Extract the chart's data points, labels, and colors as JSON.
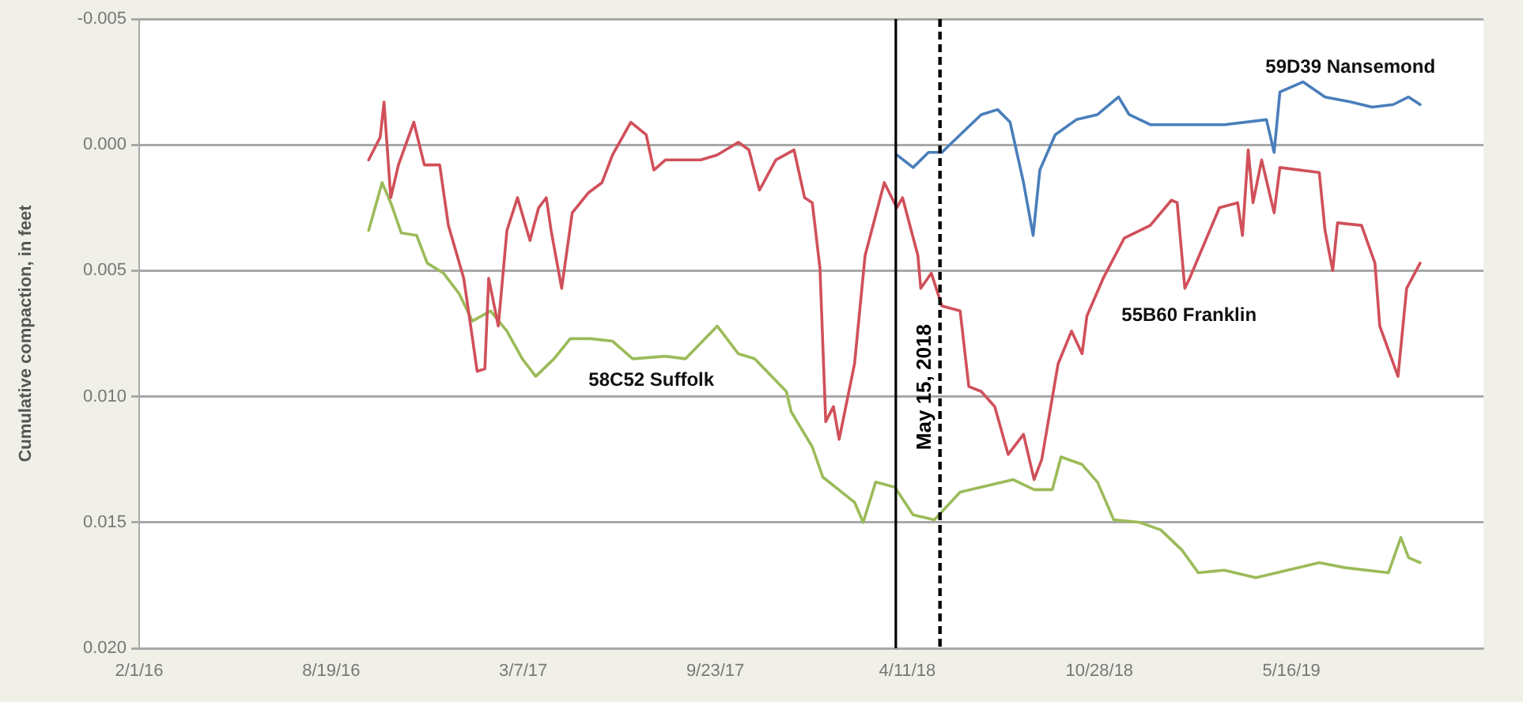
{
  "chart_data": {
    "type": "line",
    "ylabel": "Cumulative compaction, in feet",
    "xlim": [
      "2016-02-01",
      "2019-12-02"
    ],
    "xticks": [
      {
        "value": "2016-02-01",
        "label": "2/1/16"
      },
      {
        "value": "2016-08-19",
        "label": "8/19/16"
      },
      {
        "value": "2017-03-07",
        "label": "3/7/17"
      },
      {
        "value": "2017-09-23",
        "label": "9/23/17"
      },
      {
        "value": "2018-04-11",
        "label": "4/11/18"
      },
      {
        "value": "2018-10-28",
        "label": "10/28/18"
      },
      {
        "value": "2019-05-16",
        "label": "5/16/19"
      }
    ],
    "ylim": [
      0.02,
      -0.005
    ],
    "yticks": [
      {
        "value": -0.005,
        "label": "-0.005"
      },
      {
        "value": 0,
        "label": "0.000"
      },
      {
        "value": 0.005,
        "label": "0.005"
      },
      {
        "value": 0.01,
        "label": "0.010"
      },
      {
        "value": 0.015,
        "label": "0.015"
      },
      {
        "value": 0.02,
        "label": "0.020"
      }
    ],
    "grid": "y",
    "legend": false,
    "marker": "none",
    "line_style": "solid",
    "ref_lines": [
      {
        "axis": "x",
        "value": "2018-03-30",
        "color": "#000000",
        "line_style": "solid"
      },
      {
        "axis": "x",
        "value": "2018-05-15",
        "label": "May 15, 2018",
        "color": "#000000",
        "line_style": "dashed"
      }
    ],
    "series": [
      {
        "name": "59D39 Nansemond",
        "color": "#4a7ebb",
        "x": [
          "2018-03-31",
          "2018-04-17",
          "2018-05-03",
          "2018-05-17",
          "2018-06-05",
          "2018-06-27",
          "2018-07-14",
          "2018-07-27",
          "2018-08-10",
          "2018-08-20",
          "2018-08-27",
          "2018-09-12",
          "2018-10-04",
          "2018-10-26",
          "2018-11-17",
          "2018-11-28",
          "2018-12-20",
          "2019-01-22",
          "2019-03-07",
          "2019-04-20",
          "2019-04-28",
          "2019-05-04",
          "2019-05-28",
          "2019-06-20",
          "2019-07-17",
          "2019-08-08",
          "2019-08-30",
          "2019-09-15",
          "2019-09-27"
        ],
        "values": [
          0.0004,
          0.0009,
          0.0003,
          0.0003,
          -0.0004,
          -0.0012,
          -0.0014,
          -0.0009,
          0.0015,
          0.0036,
          0.001,
          -0.0004,
          -0.001,
          -0.0012,
          -0.0019,
          -0.0012,
          -0.0008,
          -0.0008,
          -0.0008,
          -0.001,
          0.0003,
          -0.0021,
          -0.0025,
          -0.0019,
          -0.0017,
          -0.0015,
          -0.0016,
          -0.0019,
          -0.0016
        ]
      },
      {
        "name": "55B60 Franklin",
        "color": "#d0505a",
        "x": [
          "2016-09-27",
          "2016-10-09",
          "2016-10-13",
          "2016-10-20",
          "2016-10-28",
          "2016-11-13",
          "2016-11-24",
          "2016-12-10",
          "2016-12-19",
          "2017-01-04",
          "2017-01-12",
          "2017-01-18",
          "2017-01-26",
          "2017-01-30",
          "2017-02-09",
          "2017-02-18",
          "2017-03-01",
          "2017-03-14",
          "2017-03-23",
          "2017-03-31",
          "2017-04-05",
          "2017-04-16",
          "2017-04-27",
          "2017-05-14",
          "2017-05-28",
          "2017-06-08",
          "2017-06-27",
          "2017-07-13",
          "2017-07-21",
          "2017-08-02",
          "2017-09-08",
          "2017-09-25",
          "2017-10-17",
          "2017-10-28",
          "2017-11-08",
          "2017-11-25",
          "2017-12-14",
          "2017-12-25",
          "2018-01-02",
          "2018-01-10",
          "2018-01-16",
          "2018-01-24",
          "2018-01-30",
          "2018-02-15",
          "2018-02-26",
          "2018-03-18",
          "2018-03-31",
          "2018-04-06",
          "2018-04-22",
          "2018-04-25",
          "2018-05-06",
          "2018-05-17",
          "2018-06-05",
          "2018-06-14",
          "2018-06-27",
          "2018-07-11",
          "2018-07-25",
          "2018-08-10",
          "2018-08-21",
          "2018-08-29",
          "2018-09-15",
          "2018-09-29",
          "2018-10-10",
          "2018-10-15",
          "2018-11-01",
          "2018-11-23",
          "2018-12-20",
          "2019-01-11",
          "2019-01-17",
          "2019-01-25",
          "2019-01-30",
          "2019-03-02",
          "2019-03-21",
          "2019-03-26",
          "2019-04-01",
          "2019-04-06",
          "2019-04-15",
          "2019-04-28",
          "2019-05-04",
          "2019-06-14",
          "2019-06-20",
          "2019-06-28",
          "2019-07-03",
          "2019-07-28",
          "2019-08-11",
          "2019-08-16",
          "2019-09-04",
          "2019-09-13",
          "2019-09-27"
        ],
        "values": [
          0.0006,
          -0.0003,
          -0.0017,
          0.0021,
          0.0008,
          -0.0009,
          0.0008,
          0.0008,
          0.0032,
          0.0053,
          0.0074,
          0.009,
          0.0089,
          0.0053,
          0.0072,
          0.0034,
          0.0021,
          0.0038,
          0.0025,
          0.0021,
          0.0034,
          0.0057,
          0.0027,
          0.0019,
          0.0015,
          0.0004,
          -0.0009,
          -0.0004,
          0.001,
          0.0006,
          0.0006,
          0.0004,
          -0.0001,
          0.0002,
          0.0018,
          0.0006,
          0.0002,
          0.0021,
          0.0023,
          0.0049,
          0.011,
          0.0104,
          0.0117,
          0.0087,
          0.0044,
          0.0015,
          0.0025,
          0.0021,
          0.0044,
          0.0057,
          0.0051,
          0.0064,
          0.0066,
          0.0096,
          0.0098,
          0.0104,
          0.0123,
          0.0115,
          0.0133,
          0.0125,
          0.0087,
          0.0074,
          0.0083,
          0.0068,
          0.0053,
          0.0037,
          0.0032,
          0.0022,
          0.0023,
          0.0057,
          0.0053,
          0.0025,
          0.0023,
          0.0036,
          0.0002,
          0.0023,
          0.0006,
          0.0027,
          0.0009,
          0.0011,
          0.0034,
          0.005,
          0.0031,
          0.0032,
          0.0047,
          0.0072,
          0.0092,
          0.0057,
          0.0047
        ]
      },
      {
        "name": "58C52 Suffolk",
        "color": "#9bbb59",
        "x": [
          "2016-09-27",
          "2016-10-11",
          "2016-10-20",
          "2016-10-31",
          "2016-11-16",
          "2016-11-27",
          "2016-12-14",
          "2016-12-30",
          "2017-01-13",
          "2017-02-01",
          "2017-02-18",
          "2017-03-06",
          "2017-03-20",
          "2017-04-08",
          "2017-04-25",
          "2017-05-16",
          "2017-06-08",
          "2017-06-29",
          "2017-08-02",
          "2017-08-23",
          "2017-09-25",
          "2017-10-17",
          "2017-11-03",
          "2017-12-06",
          "2017-12-11",
          "2018-01-02",
          "2018-01-13",
          "2018-02-15",
          "2018-02-24",
          "2018-03-09",
          "2018-03-29",
          "2018-04-17",
          "2018-05-09",
          "2018-06-05",
          "2018-07-08",
          "2018-07-30",
          "2018-08-21",
          "2018-09-09",
          "2018-09-18",
          "2018-10-10",
          "2018-10-26",
          "2018-11-12",
          "2018-12-09",
          "2018-12-31",
          "2019-01-22",
          "2019-02-08",
          "2019-03-07",
          "2019-04-09",
          "2019-05-12",
          "2019-06-14",
          "2019-07-11",
          "2019-08-25",
          "2019-09-07",
          "2019-09-15",
          "2019-09-27"
        ],
        "values": [
          0.0034,
          0.0015,
          0.0023,
          0.0035,
          0.0036,
          0.0047,
          0.0051,
          0.0059,
          0.007,
          0.0066,
          0.0074,
          0.0085,
          0.0092,
          0.0085,
          0.0077,
          0.0077,
          0.0078,
          0.0085,
          0.0084,
          0.0085,
          0.0072,
          0.0083,
          0.0085,
          0.0098,
          0.0106,
          0.012,
          0.0132,
          0.0142,
          0.015,
          0.0134,
          0.0136,
          0.0147,
          0.0149,
          0.0138,
          0.0135,
          0.0133,
          0.0137,
          0.0137,
          0.0124,
          0.0127,
          0.0134,
          0.0149,
          0.015,
          0.0153,
          0.0161,
          0.017,
          0.0169,
          0.0172,
          0.0169,
          0.0166,
          0.0168,
          0.017,
          0.0156,
          0.0164,
          0.0166
        ]
      }
    ]
  }
}
